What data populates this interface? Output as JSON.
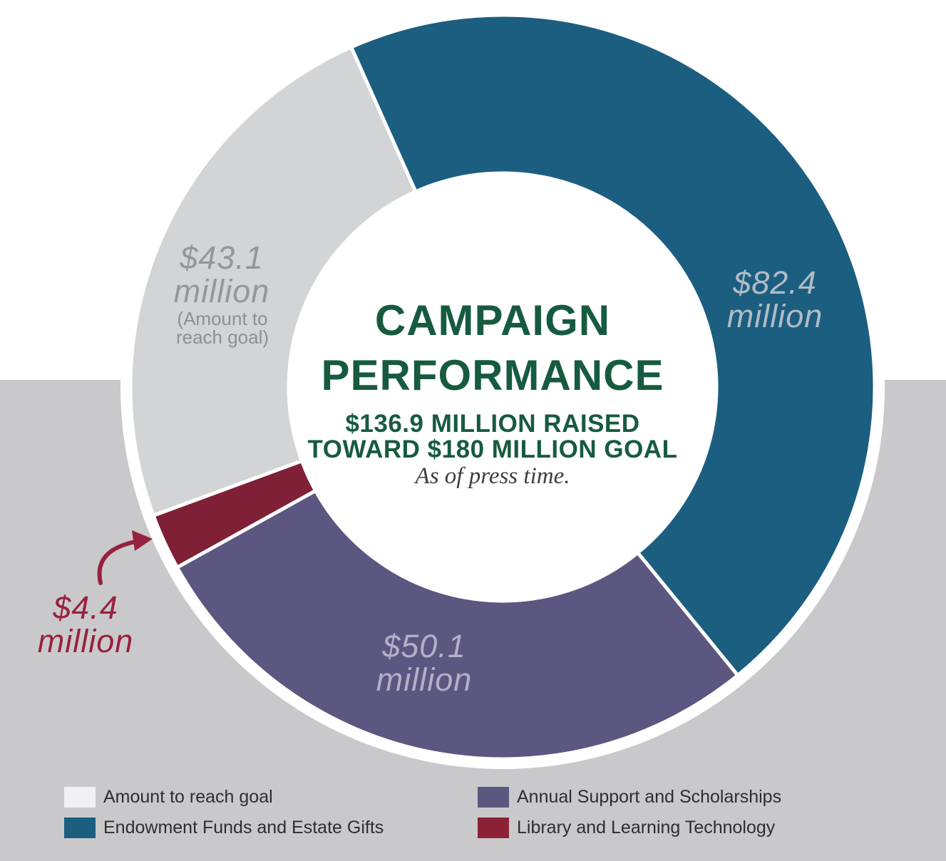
{
  "chart_data": {
    "type": "donut",
    "title": "CAMPAIGN PERFORMANCE",
    "subtitle": "$136.9 MILLION RAISED TOWARD $180 MILLION GOAL",
    "note": "As of press time.",
    "total": 180,
    "raised_million": 136.9,
    "goal_million": 180,
    "start_angle_deg": -24,
    "direction": "clockwise",
    "legend_position": "bottom",
    "segments": [
      {
        "label": "Endowment Funds and Estate Gifts",
        "value": 82.4,
        "display": "$82.4 million",
        "color": "#1B5E80"
      },
      {
        "label": "Annual Support and Scholarships",
        "value": 50.1,
        "display": "$50.1 million",
        "color": "#5C5780"
      },
      {
        "label": "Library and Learning Technology",
        "value": 4.4,
        "display": "$4.4 million",
        "color": "#7F2036"
      },
      {
        "label": "Amount to reach goal",
        "value": 43.1,
        "display": "$43.1 million",
        "sublabel": "(Amount to reach goal)",
        "color": "#D3D4D6"
      }
    ]
  },
  "center": {
    "title_line1": "CAMPAIGN",
    "title_line2": "PERFORMANCE",
    "subtitle_line1": "$136.9 MILLION RAISED",
    "subtitle_line2": "TOWARD $180 MILLION GOAL",
    "note": "As of press time."
  },
  "slice_labels": {
    "endowment": [
      "$82.4",
      "million"
    ],
    "annual": [
      "$50.1",
      "million"
    ],
    "library": [
      "$4.4",
      "million"
    ],
    "remaining": [
      "$43.1",
      "million"
    ],
    "remaining_note": [
      "(Amount to",
      "reach goal)"
    ]
  },
  "legend": {
    "items": [
      {
        "label": "Amount to reach goal",
        "swatch": "#F1F0F2"
      },
      {
        "label": "Endowment Funds and Estate Gifts",
        "swatch": "#1B5E80"
      },
      {
        "label": "Annual Support and Scholarships",
        "swatch": "#5C5780"
      },
      {
        "label": "Library and Learning Technology",
        "swatch": "#8C2136"
      }
    ]
  },
  "colors": {
    "green": "#175B3F",
    "note_gray": "#3F3E3E",
    "bg_gray": "#C9C9CB",
    "divider_white": "#FFFFFF",
    "label_on_teal": "#B2BCC6",
    "label_on_purple": "#B5B0C7",
    "label_on_gray": "#95969A",
    "label_on_gray_small": "#8E8F93",
    "maroon_label": "#97223F",
    "legend_text": "#2E2E2E"
  }
}
